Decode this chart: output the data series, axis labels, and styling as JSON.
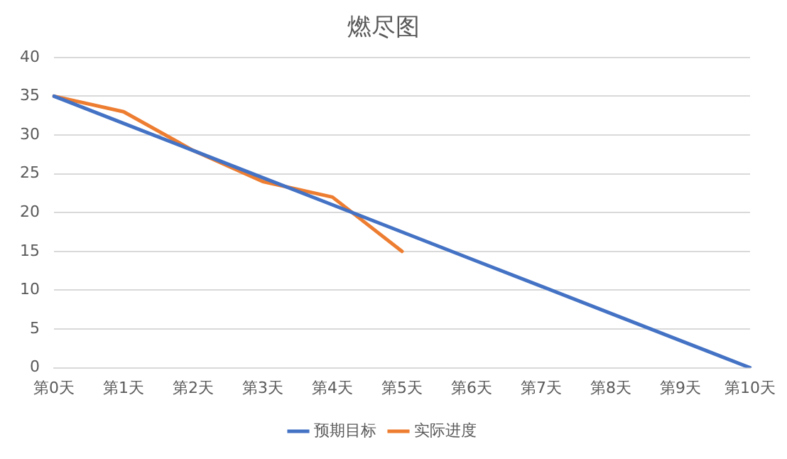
{
  "chart_data": {
    "type": "line",
    "title": "燃尽图",
    "categories": [
      "第0天",
      "第1天",
      "第2天",
      "第3天",
      "第4天",
      "第5天",
      "第6天",
      "第7天",
      "第8天",
      "第9天",
      "第10天"
    ],
    "series": [
      {
        "name": "预期目标",
        "color": "#4472c4",
        "values": [
          35,
          31.5,
          28,
          24.5,
          21,
          17.5,
          14,
          10.5,
          7,
          3.5,
          0
        ]
      },
      {
        "name": "实际进度",
        "color": "#ed7d31",
        "values": [
          35,
          33,
          28,
          24,
          22,
          15,
          null,
          null,
          null,
          null,
          null
        ]
      }
    ],
    "ylim": [
      0,
      40
    ],
    "yticks": [
      0,
      5,
      10,
      15,
      20,
      25,
      30,
      35,
      40
    ],
    "grid": "y",
    "legend": "bottom",
    "marker": "none",
    "line_style": "solid"
  }
}
